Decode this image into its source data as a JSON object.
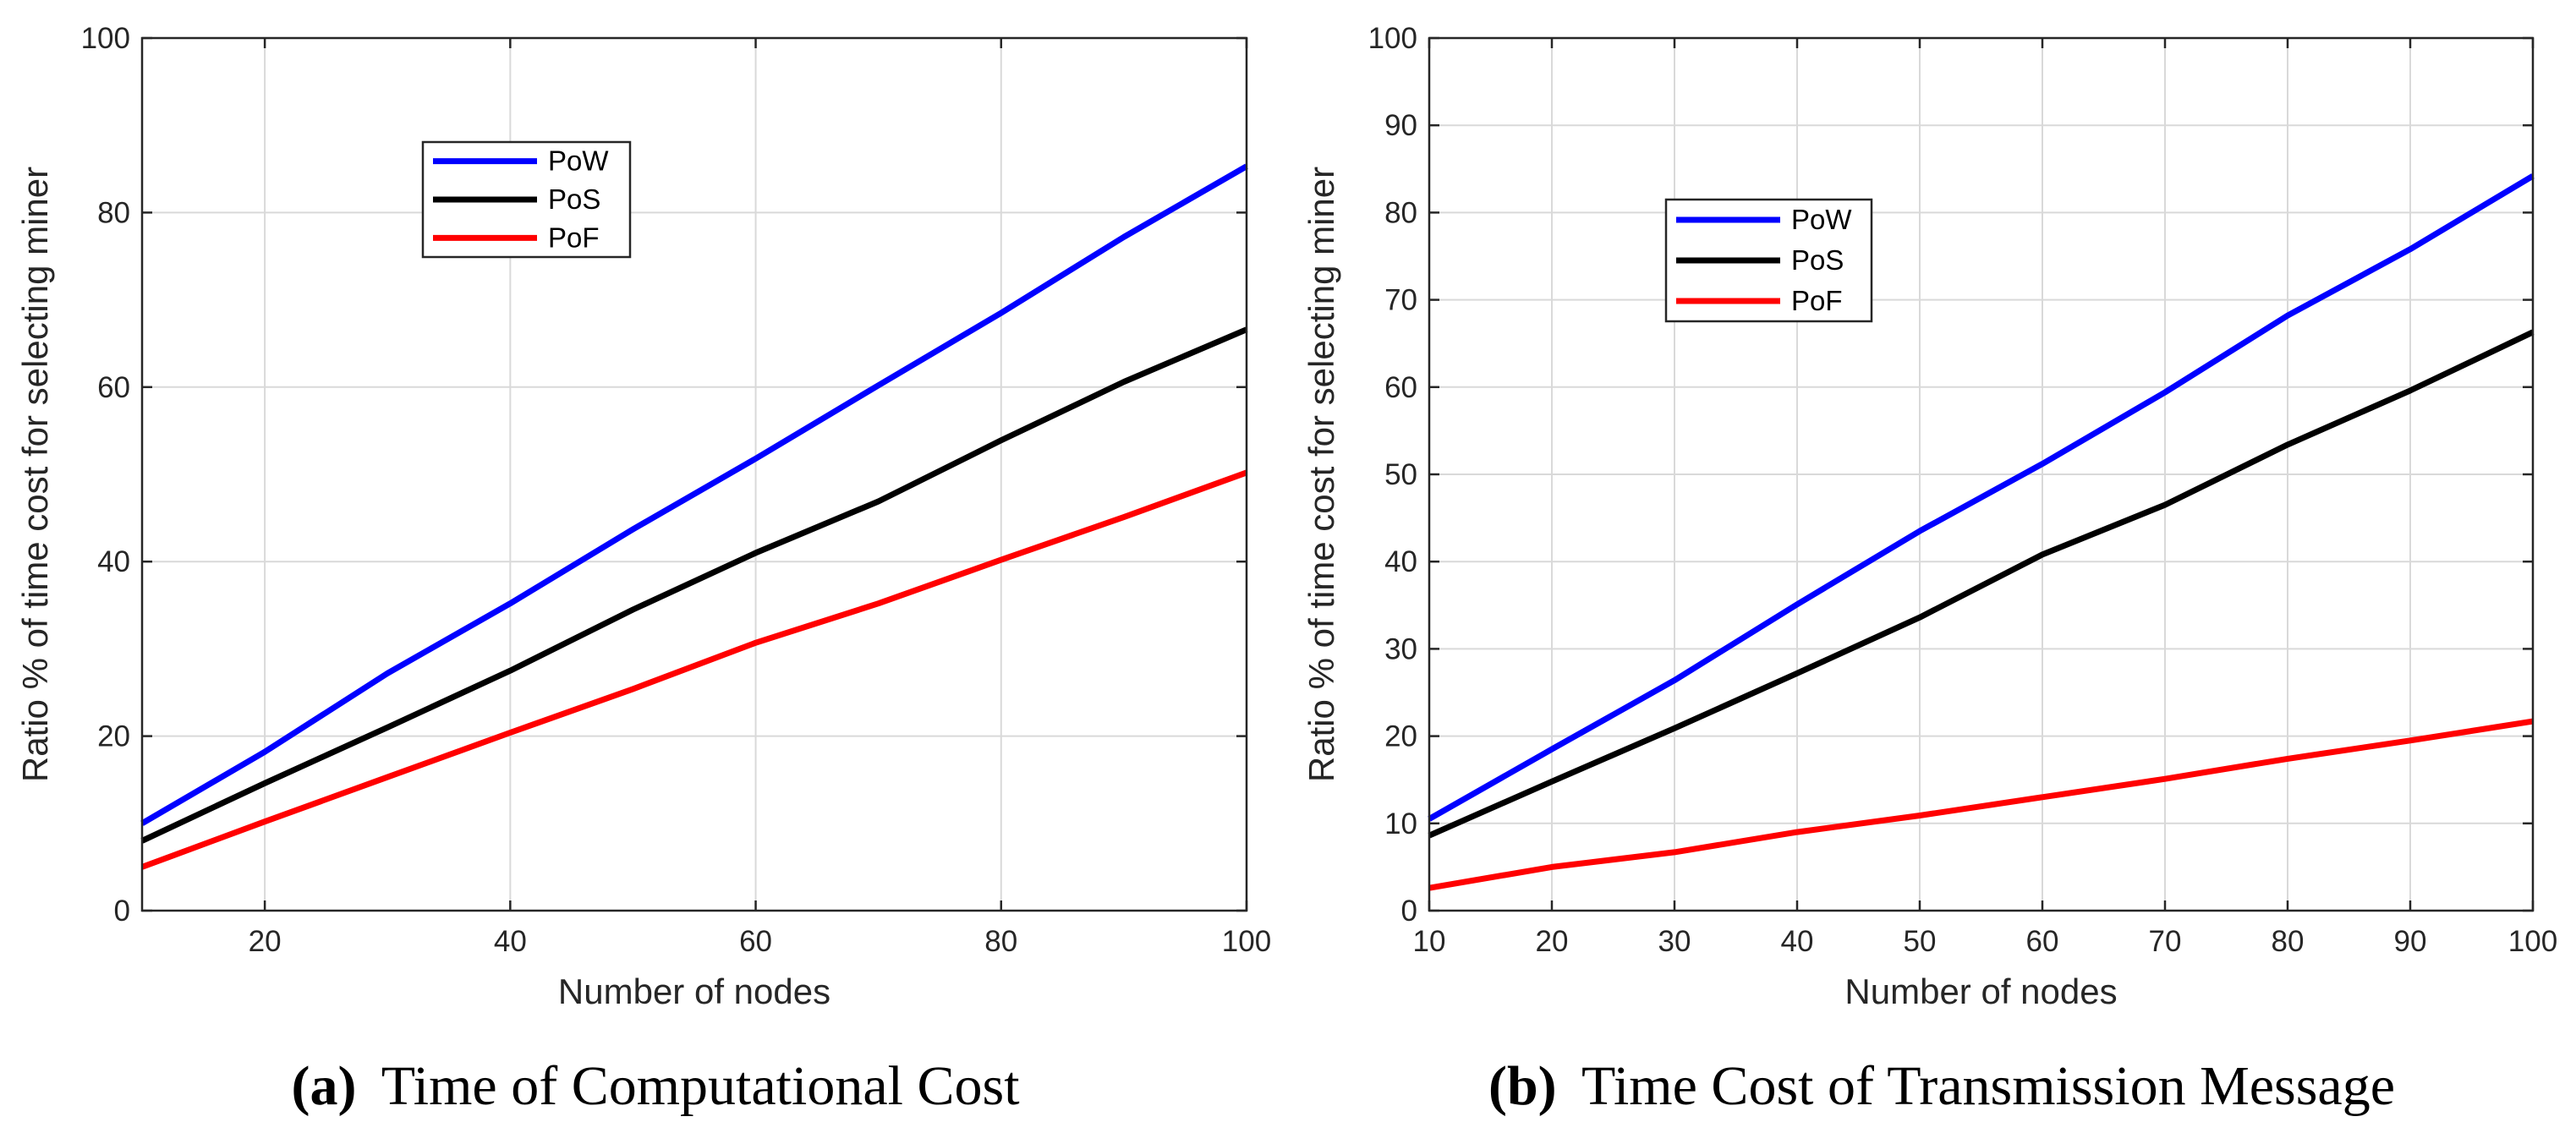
{
  "chart_data": [
    {
      "type": "line",
      "caption_label": "(a)",
      "caption_text": "Time of Computational Cost",
      "xlabel": "Number of nodes",
      "ylabel": "Ratio % of time cost for selecting miner",
      "xlim": [
        10,
        100
      ],
      "ylim": [
        0,
        100
      ],
      "xticks": [
        20,
        40,
        60,
        80,
        100
      ],
      "yticks": [
        0,
        20,
        40,
        60,
        80,
        100
      ],
      "grid": true,
      "legend_position": "top-left",
      "x": [
        10,
        20,
        30,
        40,
        50,
        60,
        70,
        80,
        90,
        100
      ],
      "series": [
        {
          "name": "PoW",
          "color": "#0000ff",
          "values": [
            10,
            18.2,
            27.2,
            35.2,
            43.7,
            51.8,
            60.2,
            68.5,
            77.2,
            85.3
          ]
        },
        {
          "name": "PoS",
          "color": "#000000",
          "values": [
            8,
            14.6,
            21,
            27.5,
            34.5,
            41,
            46.9,
            53.9,
            60.6,
            66.6
          ]
        },
        {
          "name": "PoF",
          "color": "#ff0000",
          "values": [
            5,
            10.2,
            15.3,
            20.4,
            25.4,
            30.7,
            35.2,
            40.2,
            45.1,
            50.2
          ]
        }
      ]
    },
    {
      "type": "line",
      "caption_label": "(b)",
      "caption_text": "Time Cost of Transmission Message",
      "xlabel": "Number of nodes",
      "ylabel": "Ratio % of time cost for selecting miner",
      "xlim": [
        10,
        100
      ],
      "ylim": [
        0,
        100
      ],
      "xticks": [
        10,
        20,
        30,
        40,
        50,
        60,
        70,
        80,
        90,
        100
      ],
      "yticks": [
        0,
        10,
        20,
        30,
        40,
        50,
        60,
        70,
        80,
        90,
        100
      ],
      "grid": true,
      "legend_position": "top-left",
      "x": [
        10,
        20,
        30,
        40,
        50,
        60,
        70,
        80,
        90,
        100
      ],
      "series": [
        {
          "name": "PoW",
          "color": "#0000ff",
          "values": [
            10.5,
            18.5,
            26.4,
            35.1,
            43.5,
            51.2,
            59.4,
            68.2,
            75.8,
            84.2
          ]
        },
        {
          "name": "PoS",
          "color": "#000000",
          "values": [
            8.6,
            14.8,
            20.9,
            27.2,
            33.6,
            40.8,
            46.5,
            53.4,
            59.6,
            66.3
          ]
        },
        {
          "name": "PoF",
          "color": "#ff0000",
          "values": [
            2.6,
            5,
            6.7,
            9,
            10.9,
            13,
            15.1,
            17.4,
            19.5,
            21.7
          ]
        }
      ]
    }
  ]
}
